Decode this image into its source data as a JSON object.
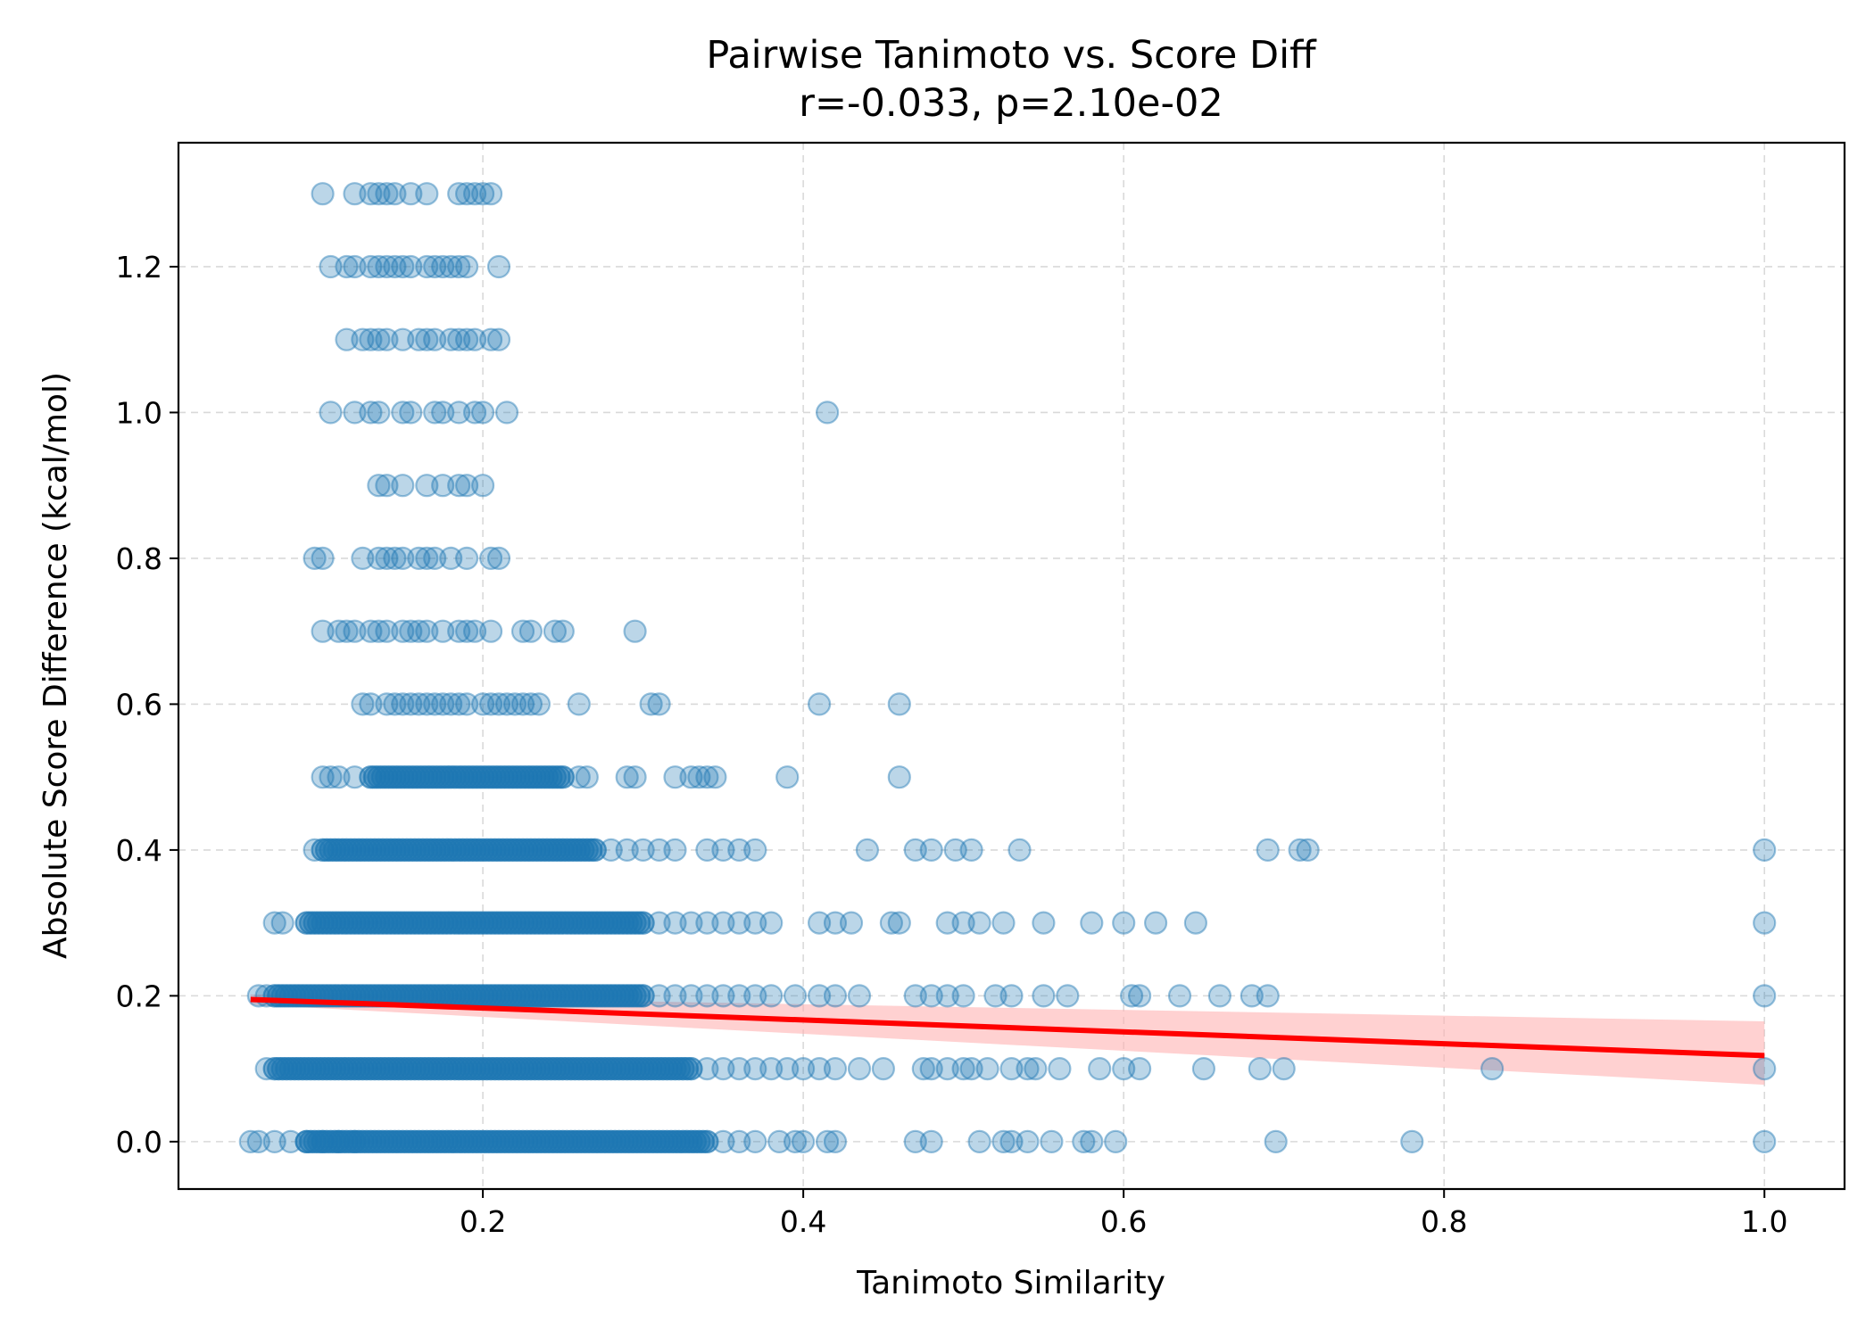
{
  "chart_data": {
    "type": "scatter",
    "title": "Pairwise Tanimoto vs. Score Diff",
    "subtitle": "r=-0.033, p=2.10e-02",
    "xlabel": "Tanimoto Similarity",
    "ylabel": "Absolute Score Difference (kcal/mol)",
    "xlim": [
      0.01,
      1.05
    ],
    "ylim": [
      -0.065,
      1.37
    ],
    "xticks": [
      0.2,
      0.4,
      0.6,
      0.8,
      1.0
    ],
    "xtick_labels": [
      "0.2",
      "0.4",
      "0.6",
      "0.8",
      "1.0"
    ],
    "yticks": [
      0.0,
      0.2,
      0.4,
      0.6,
      0.8,
      1.0,
      1.2
    ],
    "ytick_labels": [
      "0.0",
      "0.2",
      "0.4",
      "0.6",
      "0.8",
      "1.0",
      "1.2"
    ],
    "grid": true,
    "point_color": "#1f77b4",
    "fit_color": "#ff0000",
    "band_color": "#ffb3b3",
    "fit_line": {
      "x": [
        0.055,
        1.0
      ],
      "y": [
        0.195,
        0.118
      ]
    },
    "confidence_band": {
      "x": [
        0.055,
        1.0
      ],
      "y_lower": [
        0.188,
        0.078
      ],
      "y_upper": [
        0.202,
        0.165
      ]
    },
    "series": [
      {
        "name": "y=0.0",
        "dense_range": [
          0.09,
          0.34
        ],
        "x": [
          0.055,
          0.06,
          0.07,
          0.08,
          0.09,
          0.1,
          0.11,
          0.12,
          0.35,
          0.36,
          0.37,
          0.385,
          0.395,
          0.4,
          0.415,
          0.42,
          0.47,
          0.48,
          0.51,
          0.525,
          0.53,
          0.54,
          0.555,
          0.575,
          0.58,
          0.595,
          0.695,
          0.78,
          1.0
        ]
      },
      {
        "name": "y=0.1",
        "dense_range": [
          0.07,
          0.33
        ],
        "x": [
          0.065,
          0.34,
          0.35,
          0.36,
          0.37,
          0.38,
          0.39,
          0.4,
          0.41,
          0.42,
          0.435,
          0.45,
          0.475,
          0.48,
          0.49,
          0.5,
          0.505,
          0.515,
          0.53,
          0.54,
          0.545,
          0.56,
          0.585,
          0.6,
          0.61,
          0.65,
          0.685,
          0.7,
          0.83,
          1.0
        ]
      },
      {
        "name": "y=0.2",
        "dense_range": [
          0.07,
          0.3
        ],
        "x": [
          0.06,
          0.065,
          0.31,
          0.32,
          0.33,
          0.34,
          0.35,
          0.36,
          0.37,
          0.38,
          0.395,
          0.41,
          0.42,
          0.435,
          0.47,
          0.48,
          0.49,
          0.5,
          0.52,
          0.53,
          0.55,
          0.565,
          0.605,
          0.61,
          0.635,
          0.66,
          0.68,
          0.69,
          1.0
        ]
      },
      {
        "name": "y=0.3",
        "dense_range": [
          0.09,
          0.3
        ],
        "x": [
          0.07,
          0.075,
          0.31,
          0.32,
          0.33,
          0.34,
          0.35,
          0.36,
          0.37,
          0.38,
          0.41,
          0.42,
          0.43,
          0.455,
          0.46,
          0.49,
          0.5,
          0.51,
          0.525,
          0.55,
          0.58,
          0.6,
          0.62,
          0.645,
          1.0
        ]
      },
      {
        "name": "y=0.4",
        "dense_range": [
          0.1,
          0.27
        ],
        "x": [
          0.095,
          0.28,
          0.29,
          0.3,
          0.31,
          0.32,
          0.34,
          0.35,
          0.36,
          0.37,
          0.44,
          0.47,
          0.48,
          0.495,
          0.505,
          0.535,
          0.69,
          0.71,
          0.715,
          1.0
        ]
      },
      {
        "name": "y=0.5",
        "dense_range": [
          0.13,
          0.25
        ],
        "x": [
          0.1,
          0.105,
          0.11,
          0.12,
          0.26,
          0.265,
          0.29,
          0.295,
          0.32,
          0.33,
          0.335,
          0.34,
          0.345,
          0.39,
          0.46
        ]
      },
      {
        "name": "y=0.6",
        "x": [
          0.125,
          0.13,
          0.14,
          0.145,
          0.15,
          0.155,
          0.16,
          0.165,
          0.17,
          0.175,
          0.18,
          0.185,
          0.19,
          0.2,
          0.205,
          0.21,
          0.215,
          0.22,
          0.225,
          0.23,
          0.235,
          0.26,
          0.305,
          0.31,
          0.41,
          0.46
        ]
      },
      {
        "name": "y=0.7",
        "x": [
          0.1,
          0.11,
          0.115,
          0.12,
          0.13,
          0.135,
          0.14,
          0.15,
          0.155,
          0.16,
          0.165,
          0.175,
          0.185,
          0.19,
          0.195,
          0.205,
          0.225,
          0.23,
          0.245,
          0.25,
          0.295
        ]
      },
      {
        "name": "y=0.8",
        "x": [
          0.095,
          0.1,
          0.125,
          0.135,
          0.14,
          0.145,
          0.15,
          0.16,
          0.165,
          0.17,
          0.18,
          0.19,
          0.205,
          0.21
        ]
      },
      {
        "name": "y=0.9",
        "x": [
          0.135,
          0.14,
          0.15,
          0.165,
          0.175,
          0.185,
          0.19,
          0.2
        ]
      },
      {
        "name": "y=1.0",
        "x": [
          0.105,
          0.12,
          0.13,
          0.135,
          0.15,
          0.155,
          0.17,
          0.175,
          0.185,
          0.195,
          0.2,
          0.215,
          0.415
        ]
      },
      {
        "name": "y=1.1",
        "x": [
          0.115,
          0.125,
          0.13,
          0.135,
          0.14,
          0.15,
          0.16,
          0.165,
          0.17,
          0.18,
          0.185,
          0.19,
          0.195,
          0.205,
          0.21
        ]
      },
      {
        "name": "y=1.2",
        "x": [
          0.105,
          0.115,
          0.12,
          0.13,
          0.135,
          0.14,
          0.145,
          0.15,
          0.155,
          0.165,
          0.17,
          0.175,
          0.18,
          0.185,
          0.19,
          0.21
        ]
      },
      {
        "name": "y=1.3",
        "x": [
          0.1,
          0.12,
          0.13,
          0.135,
          0.14,
          0.145,
          0.155,
          0.165,
          0.185,
          0.19,
          0.195,
          0.2,
          0.205
        ]
      }
    ]
  }
}
